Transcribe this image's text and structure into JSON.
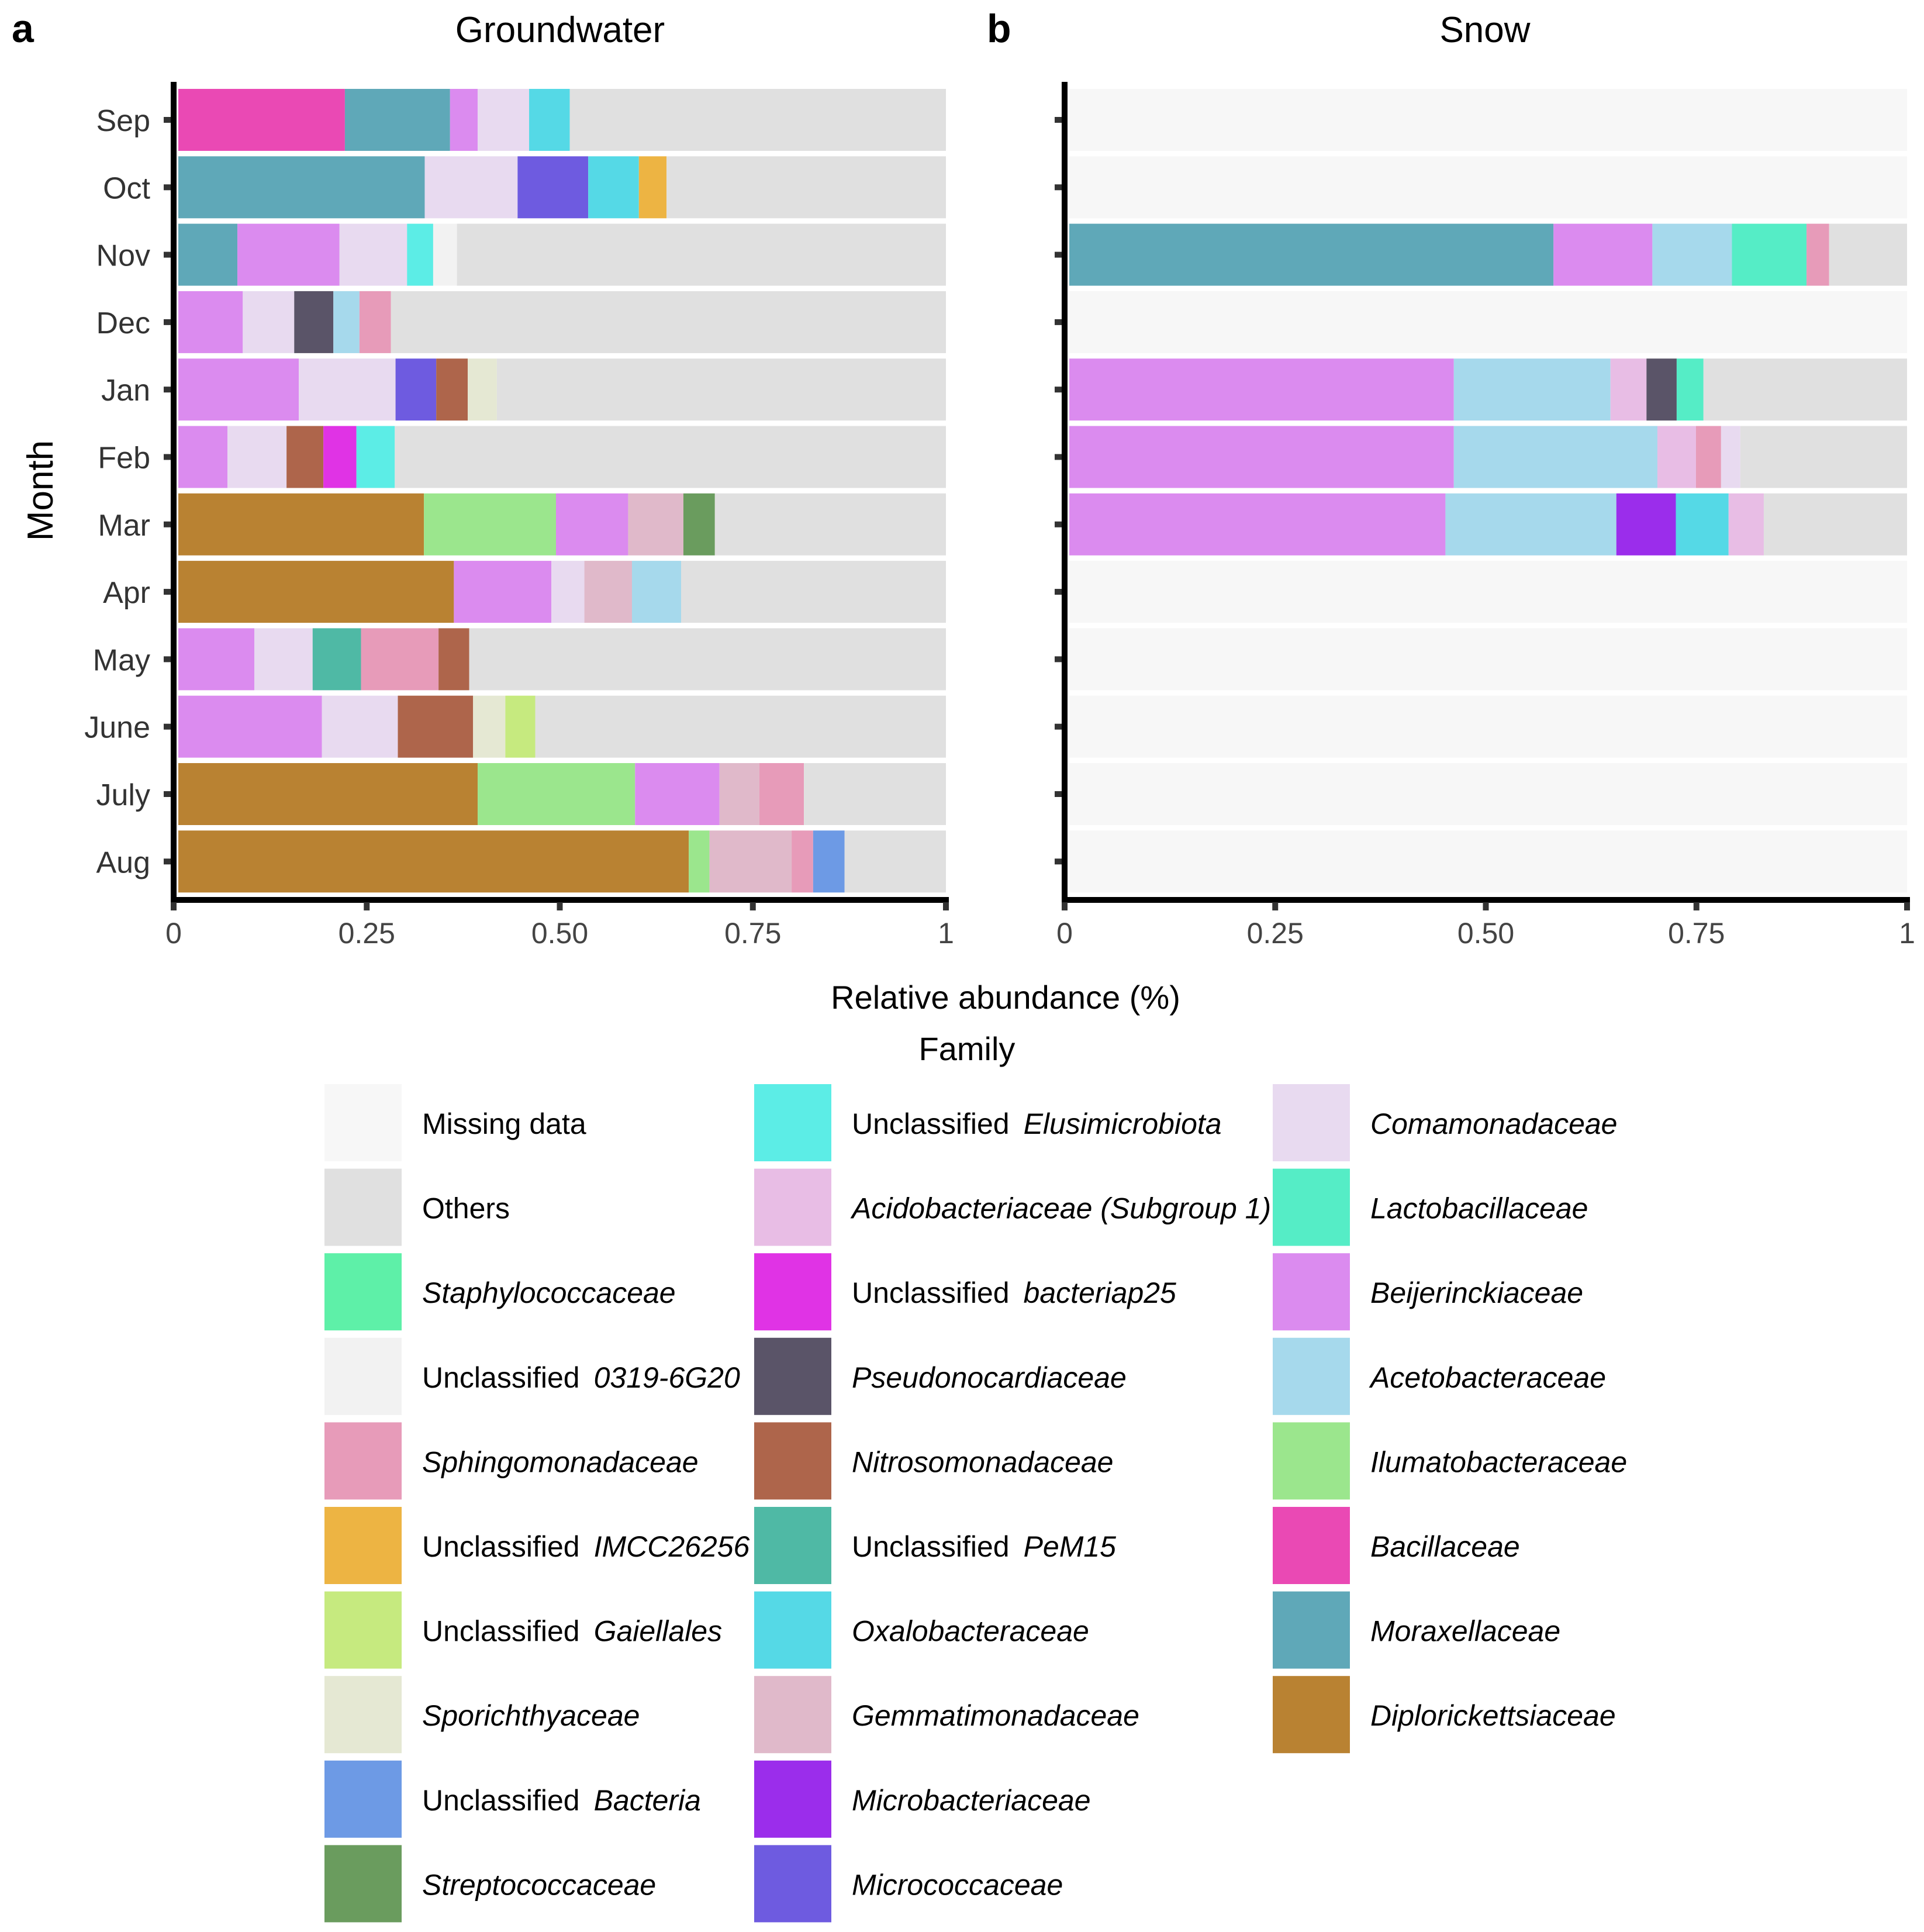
{
  "xlabel": "Relative abundance (%)",
  "ylabel": "Month",
  "legend_title": "Family",
  "panels": [
    {
      "letter": "a",
      "title": "Groundwater"
    },
    {
      "letter": "b",
      "title": "Snow"
    }
  ],
  "families": [
    {
      "name": "Missing data",
      "prefix": "",
      "italic": "",
      "color": "#F7F7F7"
    },
    {
      "name": "Others",
      "prefix": "Others",
      "italic": "",
      "color": "#E0E0E0"
    },
    {
      "name": "Staphylococcaceae",
      "prefix": "",
      "italic": "Staphylococcaceae",
      "color": "#5EF0A8"
    },
    {
      "name": "Unclassified 0319-6G20",
      "prefix": "Unclassified",
      "italic": "0319-6G20",
      "color": "#F2F2F2"
    },
    {
      "name": "Sphingomonadaceae",
      "prefix": "",
      "italic": "Sphingomonadaceae",
      "color": "#E79BB9"
    },
    {
      "name": "Unclassified IMCC26256",
      "prefix": "Unclassified",
      "italic": "IMCC26256",
      "color": "#EDB443"
    },
    {
      "name": "Unclassified Gaiellales",
      "prefix": "Unclassified",
      "italic": "Gaiellales",
      "color": "#C6EA7F"
    },
    {
      "name": "Sporichthyaceae",
      "prefix": "",
      "italic": "Sporichthyaceae",
      "color": "#E5E8D3"
    },
    {
      "name": "Unclassified Bacteria",
      "prefix": "Unclassified",
      "italic": "Bacteria",
      "color": "#6D9AE5"
    },
    {
      "name": "Streptococcaceae",
      "prefix": "",
      "italic": "Streptococcaceae",
      "color": "#6A9C5E"
    },
    {
      "name": "Unclassified Elusimicrobiota",
      "prefix": "Unclassified",
      "italic": "Elusimicrobiota",
      "color": "#5CEDE6"
    },
    {
      "name": "Acidobacteriaceae (Subgroup 1)",
      "prefix": "",
      "italic": "Acidobacteriaceae (Subgroup 1)",
      "color": "#E8BDE5"
    },
    {
      "name": "Unclassified bacteriap25",
      "prefix": "Unclassified",
      "italic": "bacteriap25",
      "color": "#E033E5"
    },
    {
      "name": "Pseudonocardiaceae",
      "prefix": "",
      "italic": "Pseudonocardiaceae",
      "color": "#5A5468"
    },
    {
      "name": "Nitrosomonadaceae",
      "prefix": "",
      "italic": "Nitrosomonadaceae",
      "color": "#AE654B"
    },
    {
      "name": "Unclassified PeM15",
      "prefix": "Unclassified",
      "italic": "PeM15",
      "color": "#4FB9A5"
    },
    {
      "name": "Oxalobacteraceae",
      "prefix": "",
      "italic": "Oxalobacteraceae",
      "color": "#55D9E6"
    },
    {
      "name": "Gemmatimonadaceae",
      "prefix": "",
      "italic": "Gemmatimonadaceae",
      "color": "#E0B9CA"
    },
    {
      "name": "Microbacteriaceae",
      "prefix": "",
      "italic": "Microbacteriaceae",
      "color": "#9B2DEB"
    },
    {
      "name": "Micrococcaceae",
      "prefix": "",
      "italic": "Micrococcaceae",
      "color": "#6E5BE0"
    },
    {
      "name": "Comamonadaceae",
      "prefix": "",
      "italic": "Comamonadaceae",
      "color": "#E8DAF0"
    },
    {
      "name": "Lactobacillaceae",
      "prefix": "",
      "italic": "Lactobacillaceae",
      "color": "#55EDC6"
    },
    {
      "name": "Beijerinckiaceae",
      "prefix": "",
      "italic": "Beijerinckiaceae",
      "color": "#DB8BEF"
    },
    {
      "name": "Acetobacteraceae",
      "prefix": "",
      "italic": "Acetobacteraceae",
      "color": "#A6D9EC"
    },
    {
      "name": "Ilumatobacteraceae",
      "prefix": "",
      "italic": "Ilumatobacteraceae",
      "color": "#9BE68D"
    },
    {
      "name": "Bacillaceae",
      "prefix": "",
      "italic": "Bacillaceae",
      "color": "#EA49B4"
    },
    {
      "name": "Moraxellaceae",
      "prefix": "",
      "italic": "Moraxellaceae",
      "color": "#5FA8B8"
    },
    {
      "name": "Diplorickettsiaceae",
      "prefix": "",
      "italic": "Diplorickettsiaceae",
      "color": "#B98232"
    }
  ],
  "chart_data": [
    {
      "type": "bar",
      "orientation": "horizontal",
      "stacked": true,
      "title": "Groundwater",
      "xlabel": "Relative abundance (%)",
      "ylabel": "Month",
      "xlim": [
        0,
        1
      ],
      "xticks": [
        "0",
        "0.25",
        "0.50",
        "0.75",
        "1"
      ],
      "categories": [
        "Sep",
        "Oct",
        "Nov",
        "Dec",
        "Jan",
        "Feb",
        "Mar",
        "Apr",
        "May",
        "June",
        "July",
        "Aug"
      ],
      "rows": [
        {
          "month": "Sep",
          "segments": [
            [
              "Bacillaceae",
              0.217
            ],
            [
              "Moraxellaceae",
              0.137
            ],
            [
              "Beijerinckiaceae",
              0.036
            ],
            [
              "Comamonadaceae",
              0.067
            ],
            [
              "Oxalobacteraceae",
              0.053
            ],
            [
              "Others",
              0.49
            ]
          ]
        },
        {
          "month": "Oct",
          "segments": [
            [
              "Moraxellaceae",
              0.321
            ],
            [
              "Comamonadaceae",
              0.121
            ],
            [
              "Micrococcaceae",
              0.092
            ],
            [
              "Oxalobacteraceae",
              0.066
            ],
            [
              "Unclassified IMCC26256",
              0.036
            ],
            [
              "Others",
              0.364
            ]
          ]
        },
        {
          "month": "Nov",
          "segments": [
            [
              "Moraxellaceae",
              0.077
            ],
            [
              "Beijerinckiaceae",
              0.133
            ],
            [
              "Comamonadaceae",
              0.088
            ],
            [
              "Unclassified Elusimicrobiota",
              0.034
            ],
            [
              "Unclassified 0319-6G20",
              0.031
            ],
            [
              "Others",
              0.637
            ]
          ]
        },
        {
          "month": "Dec",
          "segments": [
            [
              "Beijerinckiaceae",
              0.084
            ],
            [
              "Comamonadaceae",
              0.067
            ],
            [
              "Pseudonocardiaceae",
              0.051
            ],
            [
              "Acetobacteraceae",
              0.034
            ],
            [
              "Sphingomonadaceae",
              0.041
            ],
            [
              "Others",
              0.723
            ]
          ]
        },
        {
          "month": "Jan",
          "segments": [
            [
              "Beijerinckiaceae",
              0.157
            ],
            [
              "Comamonadaceae",
              0.126
            ],
            [
              "Micrococcaceae",
              0.053
            ],
            [
              "Nitrosomonadaceae",
              0.041
            ],
            [
              "Sporichthyaceae",
              0.038
            ],
            [
              "Others",
              0.585
            ]
          ]
        },
        {
          "month": "Feb",
          "segments": [
            [
              "Beijerinckiaceae",
              0.064
            ],
            [
              "Comamonadaceae",
              0.077
            ],
            [
              "Nitrosomonadaceae",
              0.048
            ],
            [
              "Unclassified bacteriap25",
              0.043
            ],
            [
              "Unclassified Elusimicrobiota",
              0.05
            ],
            [
              "Others",
              0.718
            ]
          ]
        },
        {
          "month": "Mar",
          "segments": [
            [
              "Diplorickettsiaceae",
              0.32
            ],
            [
              "Ilumatobacteraceae",
              0.172
            ],
            [
              "Beijerinckiaceae",
              0.094
            ],
            [
              "Gemmatimonadaceae",
              0.072
            ],
            [
              "Streptococcaceae",
              0.041
            ],
            [
              "Others",
              0.301
            ]
          ]
        },
        {
          "month": "Apr",
          "segments": [
            [
              "Diplorickettsiaceae",
              0.359
            ],
            [
              "Beijerinckiaceae",
              0.127
            ],
            [
              "Comamonadaceae",
              0.043
            ],
            [
              "Gemmatimonadaceae",
              0.062
            ],
            [
              "Acetobacteraceae",
              0.064
            ],
            [
              "Others",
              0.345
            ]
          ]
        },
        {
          "month": "May",
          "segments": [
            [
              "Beijerinckiaceae",
              0.099
            ],
            [
              "Comamonadaceae",
              0.076
            ],
            [
              "Unclassified PeM15",
              0.063
            ],
            [
              "Sphingomonadaceae",
              0.101
            ],
            [
              "Nitrosomonadaceae",
              0.04
            ],
            [
              "Others",
              0.621
            ]
          ]
        },
        {
          "month": "June",
          "segments": [
            [
              "Beijerinckiaceae",
              0.187
            ],
            [
              "Comamonadaceae",
              0.099
            ],
            [
              "Nitrosomonadaceae",
              0.098
            ],
            [
              "Sporichthyaceae",
              0.042
            ],
            [
              "Unclassified Gaiellales",
              0.039
            ],
            [
              "Others",
              0.535
            ]
          ]
        },
        {
          "month": "July",
          "segments": [
            [
              "Diplorickettsiaceae",
              0.39
            ],
            [
              "Ilumatobacteraceae",
              0.205
            ],
            [
              "Beijerinckiaceae",
              0.11
            ],
            [
              "Gemmatimonadaceae",
              0.052
            ],
            [
              "Sphingomonadaceae",
              0.058
            ],
            [
              "Others",
              0.185
            ]
          ]
        },
        {
          "month": "Aug",
          "segments": [
            [
              "Diplorickettsiaceae",
              0.665
            ],
            [
              "Ilumatobacteraceae",
              0.027
            ],
            [
              "Gemmatimonadaceae",
              0.107
            ],
            [
              "Sphingomonadaceae",
              0.028
            ],
            [
              "Unclassified Bacteria",
              0.041
            ],
            [
              "Others",
              0.132
            ]
          ]
        }
      ]
    },
    {
      "type": "bar",
      "orientation": "horizontal",
      "stacked": true,
      "title": "Snow",
      "xlabel": "Relative abundance (%)",
      "ylabel": "Month",
      "xlim": [
        0,
        1
      ],
      "xticks": [
        "0",
        "0.25",
        "0.50",
        "0.75",
        "1"
      ],
      "categories": [
        "Sep",
        "Oct",
        "Nov",
        "Dec",
        "Jan",
        "Feb",
        "Mar",
        "Apr",
        "May",
        "June",
        "July",
        "Aug"
      ],
      "rows": [
        {
          "month": "Sep",
          "segments": [
            [
              "Missing data",
              1.0
            ]
          ]
        },
        {
          "month": "Oct",
          "segments": [
            [
              "Missing data",
              1.0
            ]
          ]
        },
        {
          "month": "Nov",
          "segments": [
            [
              "Moraxellaceae",
              0.578
            ],
            [
              "Beijerinckiaceae",
              0.118
            ],
            [
              "Acetobacteraceae",
              0.095
            ],
            [
              "Lactobacillaceae",
              0.089
            ],
            [
              "Sphingomonadaceae",
              0.027
            ],
            [
              "Others",
              0.093
            ]
          ]
        },
        {
          "month": "Dec",
          "segments": [
            [
              "Missing data",
              1.0
            ]
          ]
        },
        {
          "month": "Jan",
          "segments": [
            [
              "Beijerinckiaceae",
              0.459
            ],
            [
              "Acetobacteraceae",
              0.187
            ],
            [
              "Acidobacteriaceae (Subgroup 1)",
              0.043
            ],
            [
              "Pseudonocardiaceae",
              0.036
            ],
            [
              "Lactobacillaceae",
              0.032
            ],
            [
              "Others",
              0.243
            ]
          ]
        },
        {
          "month": "Feb",
          "segments": [
            [
              "Beijerinckiaceae",
              0.459
            ],
            [
              "Acetobacteraceae",
              0.243
            ],
            [
              "Acidobacteriaceae (Subgroup 1)",
              0.046
            ],
            [
              "Sphingomonadaceae",
              0.03
            ],
            [
              "Comamonadaceae",
              0.023
            ],
            [
              "Others",
              0.199
            ]
          ]
        },
        {
          "month": "Mar",
          "segments": [
            [
              "Beijerinckiaceae",
              0.449
            ],
            [
              "Acetobacteraceae",
              0.204
            ],
            [
              "Microbacteriaceae",
              0.071
            ],
            [
              "Oxalobacteraceae",
              0.063
            ],
            [
              "Acidobacteriaceae (Subgroup 1)",
              0.042
            ],
            [
              "Others",
              0.171
            ]
          ]
        },
        {
          "month": "Apr",
          "segments": [
            [
              "Missing data",
              1.0
            ]
          ]
        },
        {
          "month": "May",
          "segments": [
            [
              "Missing data",
              1.0
            ]
          ]
        },
        {
          "month": "June",
          "segments": [
            [
              "Missing data",
              1.0
            ]
          ]
        },
        {
          "month": "July",
          "segments": [
            [
              "Missing data",
              1.0
            ]
          ]
        },
        {
          "month": "Aug",
          "segments": [
            [
              "Missing data",
              1.0
            ]
          ]
        }
      ]
    }
  ]
}
